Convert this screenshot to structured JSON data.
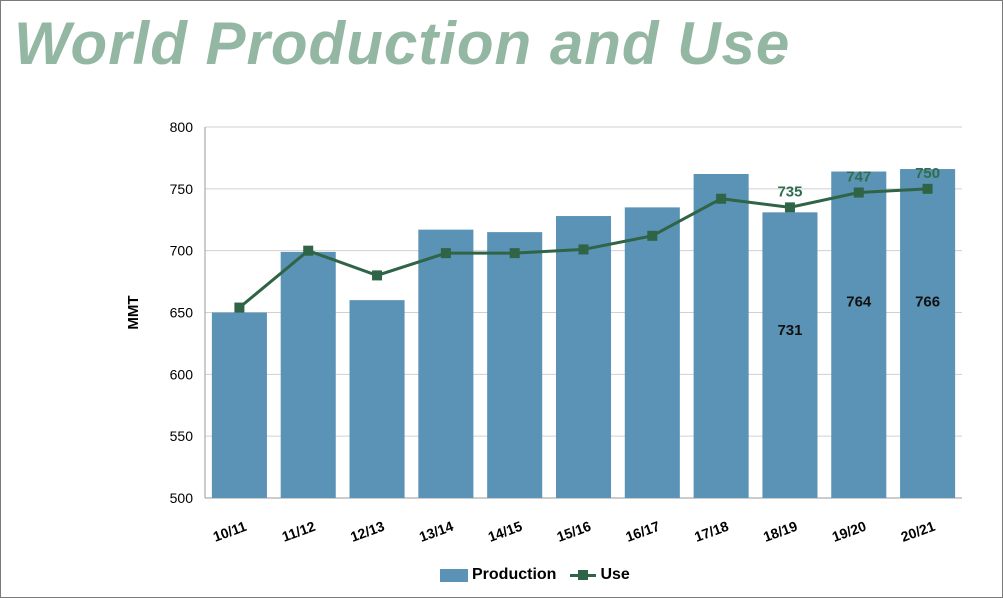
{
  "title": "World Production and Use",
  "colors": {
    "title": "#93b7a3",
    "production": "#5a93b5",
    "use": "#2f6446",
    "use_label": "#2f6e4c",
    "grid": "#d0d0d0"
  },
  "chart_data": {
    "type": "bar",
    "categories": [
      "10/11",
      "11/12",
      "12/13",
      "13/14",
      "14/15",
      "15/16",
      "16/17",
      "17/18",
      "18/19",
      "19/20",
      "20/21"
    ],
    "series": [
      {
        "name": "Production",
        "type": "bar",
        "values": [
          650,
          699,
          660,
          717,
          715,
          728,
          735,
          762,
          731,
          764,
          766
        ]
      },
      {
        "name": "Use",
        "type": "line",
        "values": [
          654,
          700,
          680,
          698,
          698,
          701,
          712,
          742,
          735,
          747,
          750
        ]
      }
    ],
    "data_labels": {
      "production": [
        {
          "index": 8,
          "text": "731"
        },
        {
          "index": 9,
          "text": "764"
        },
        {
          "index": 10,
          "text": "766"
        }
      ],
      "use": [
        {
          "index": 8,
          "text": "735"
        },
        {
          "index": 9,
          "text": "747"
        },
        {
          "index": 10,
          "text": "750"
        }
      ]
    },
    "xlabel": "",
    "ylabel": "MMT",
    "ylim": [
      500,
      800
    ],
    "yticks": [
      500,
      550,
      600,
      650,
      700,
      750,
      800
    ],
    "grid": true,
    "legend": "bottom-center"
  }
}
